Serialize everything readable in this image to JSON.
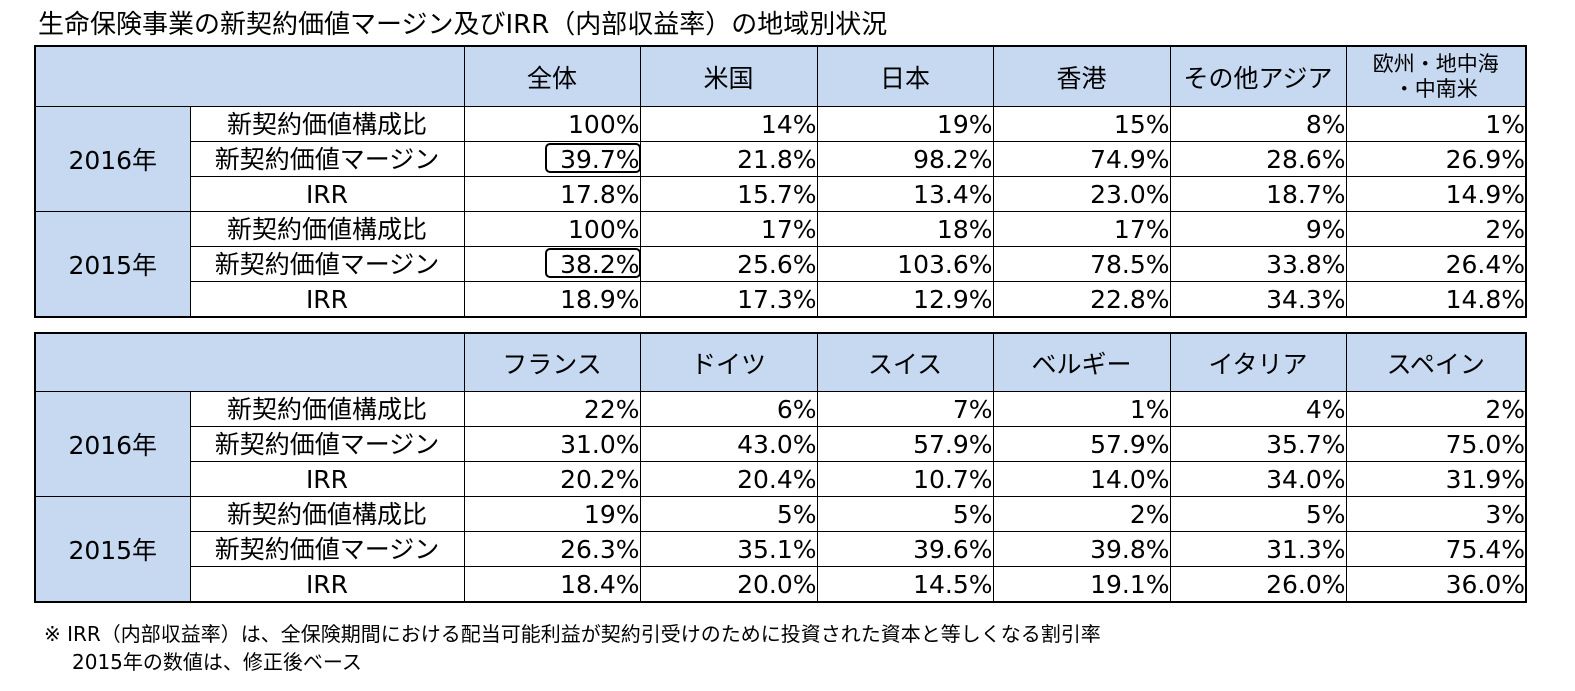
{
  "title": "生命保険事業の新契約価値マージン及びIRR（内部収益率）の地域別状況",
  "row_labels": {
    "nbv_share": "新契約価値構成比",
    "nbv_margin": "新契約価値マージン",
    "irr": "IRR"
  },
  "tables": [
    {
      "columns": [
        "全体",
        "米国",
        "日本",
        "香港",
        "その他アジア",
        "欧州・地中海\n・中南米"
      ],
      "groups": [
        {
          "year": "2016年",
          "rows": [
            [
              "100%",
              "14%",
              "19%",
              "15%",
              "8%",
              "1%"
            ],
            [
              "39.7%",
              "21.8%",
              "98.2%",
              "74.9%",
              "28.6%",
              "26.9%"
            ],
            [
              "17.8%",
              "15.7%",
              "13.4%",
              "23.0%",
              "18.7%",
              "14.9%"
            ]
          ]
        },
        {
          "year": "2015年",
          "rows": [
            [
              "100%",
              "17%",
              "18%",
              "17%",
              "9%",
              "2%"
            ],
            [
              "38.2%",
              "25.6%",
              "103.6%",
              "78.5%",
              "33.8%",
              "26.4%"
            ],
            [
              "18.9%",
              "17.3%",
              "12.9%",
              "22.8%",
              "34.3%",
              "14.8%"
            ]
          ]
        }
      ]
    },
    {
      "columns": [
        "フランス",
        "ドイツ",
        "スイス",
        "ベルギー",
        "イタリア",
        "スペイン"
      ],
      "groups": [
        {
          "year": "2016年",
          "rows": [
            [
              "22%",
              "6%",
              "7%",
              "1%",
              "4%",
              "2%"
            ],
            [
              "31.0%",
              "43.0%",
              "57.9%",
              "57.9%",
              "35.7%",
              "75.0%"
            ],
            [
              "20.2%",
              "20.4%",
              "10.7%",
              "14.0%",
              "34.0%",
              "31.9%"
            ]
          ]
        },
        {
          "year": "2015年",
          "rows": [
            [
              "19%",
              "5%",
              "5%",
              "2%",
              "5%",
              "3%"
            ],
            [
              "26.3%",
              "35.1%",
              "39.6%",
              "39.8%",
              "31.3%",
              "75.4%"
            ],
            [
              "18.4%",
              "20.0%",
              "14.5%",
              "19.1%",
              "26.0%",
              "36.0%"
            ]
          ]
        }
      ]
    }
  ],
  "notes": [
    "※ IRR（内部収益率）は、全保険期間における配当可能利益が契約引受けのために投資された資本と等しくなる割引率",
    "2015年の数値は、修正後ベース"
  ],
  "colors": {
    "header_fill": "#c6d9f1",
    "border": "#000000"
  }
}
